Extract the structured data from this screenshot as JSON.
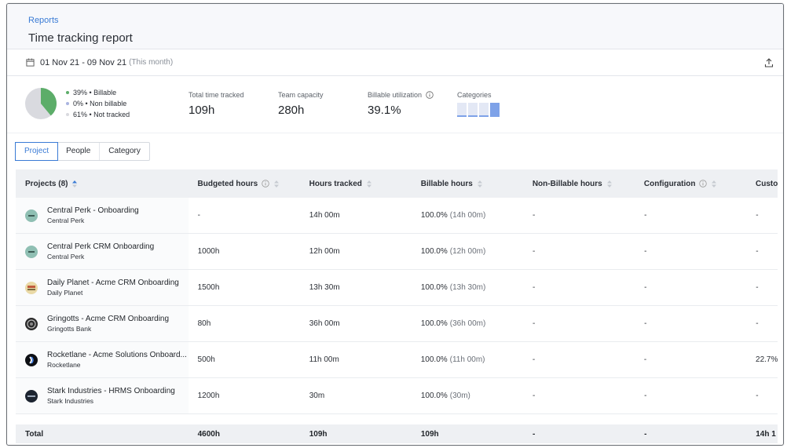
{
  "breadcrumb": "Reports",
  "page_title": "Time tracking report",
  "date_range": "01 Nov 21 - 09 Nov 21",
  "date_note": "(This month)",
  "summary": {
    "legend": [
      {
        "pct": "39%",
        "label": "Billable",
        "color": "#5cad69"
      },
      {
        "pct": "0%",
        "label": "Non billable",
        "color": "#a9b4e0"
      },
      {
        "pct": "61%",
        "label": "Not tracked",
        "color": "#d9dadf"
      }
    ],
    "billable_fraction": 0.39,
    "metrics": [
      {
        "label": "Total time tracked",
        "value": "109h"
      },
      {
        "label": "Team capacity",
        "value": "280h"
      },
      {
        "label": "Billable utilization",
        "value": "39.1%"
      }
    ],
    "categories_label": "Categories"
  },
  "tabs": [
    "Project",
    "People",
    "Category"
  ],
  "table": {
    "headers": [
      "Projects (8)",
      "Budgeted hours",
      "Hours tracked",
      "Billable hours",
      "Non-Billable hours",
      "Configuration",
      "Custo"
    ],
    "rows": [
      {
        "name": "Central Perk - Onboarding",
        "client": "Central Perk",
        "icon": "central-perk-logo",
        "budget": "-",
        "tracked": "14h 00m",
        "billable": "100.0%",
        "billable_detail": "(14h 00m)",
        "nonbillable": "-",
        "config": "-",
        "custom": "-"
      },
      {
        "name": "Central Perk CRM Onboarding",
        "client": "Central Perk",
        "icon": "central-perk-logo",
        "budget": "1000h",
        "tracked": "12h 00m",
        "billable": "100.0%",
        "billable_detail": "(12h 00m)",
        "nonbillable": "-",
        "config": "-",
        "custom": "-"
      },
      {
        "name": "Daily Planet - Acme CRM Onboarding",
        "client": "Daily Planet",
        "icon": "daily-planet-logo",
        "budget": "1500h",
        "tracked": "13h 30m",
        "billable": "100.0%",
        "billable_detail": "(13h 30m)",
        "nonbillable": "-",
        "config": "-",
        "custom": "-"
      },
      {
        "name": "Gringotts - Acme CRM Onboarding",
        "client": "Gringotts Bank",
        "icon": "gringotts-logo",
        "budget": "80h",
        "tracked": "36h 00m",
        "billable": "100.0%",
        "billable_detail": "(36h 00m)",
        "nonbillable": "-",
        "config": "-",
        "custom": "-"
      },
      {
        "name": "Rocketlane - Acme Solutions Onboard...",
        "client": "Rocketlane",
        "icon": "rocketlane-logo",
        "budget": "500h",
        "tracked": "11h 00m",
        "billable": "100.0%",
        "billable_detail": "(11h 00m)",
        "nonbillable": "-",
        "config": "-",
        "custom": "22.7%"
      },
      {
        "name": "Stark Industries - HRMS Onboarding",
        "client": "Stark Industries",
        "icon": "stark-industries-logo",
        "budget": "1200h",
        "tracked": "30m",
        "billable": "100.0%",
        "billable_detail": "(30m)",
        "nonbillable": "-",
        "config": "-",
        "custom": "-"
      }
    ],
    "total": {
      "label": "Total",
      "budget": "4600h",
      "tracked": "109h",
      "billable": "109h",
      "nonbillable": "-",
      "config": "-",
      "custom": "14h 1"
    }
  },
  "colors": {
    "accent": "#3a7bd5",
    "billable_green": "#5cad69",
    "header_bg": "#eef0f3"
  }
}
